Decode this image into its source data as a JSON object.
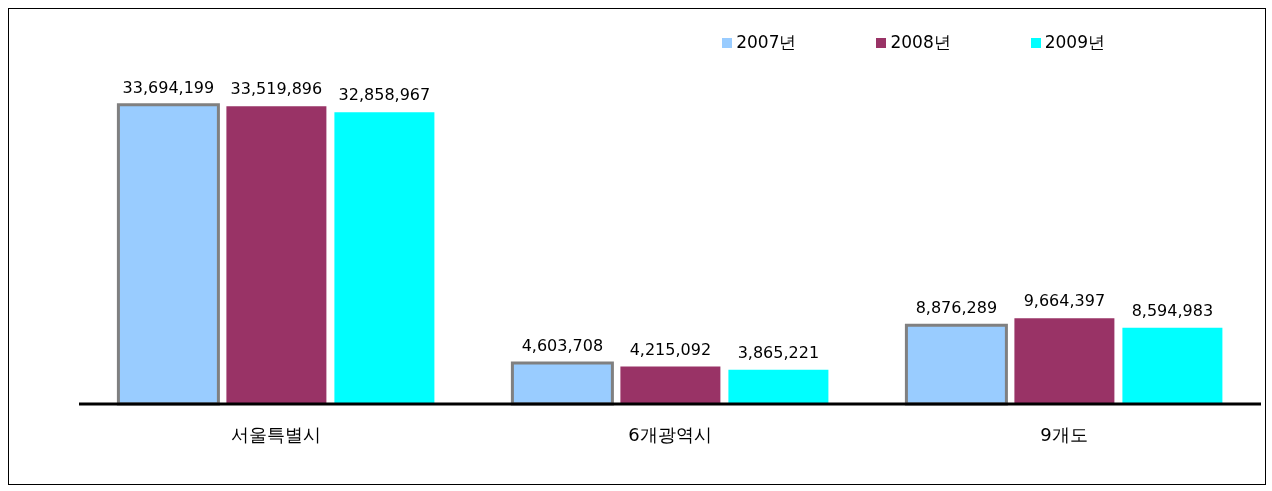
{
  "chart_data": {
    "type": "bar",
    "categories": [
      "서울특별시",
      "6개광역시",
      "9개도"
    ],
    "series": [
      {
        "name": "2007년",
        "color": "#99ccff",
        "values": [
          33694199,
          4603708,
          8876289
        ],
        "value_labels": [
          "33,694,199",
          "4,603,708",
          "8,876,289"
        ]
      },
      {
        "name": "2008년",
        "color": "#993366",
        "values": [
          33519896,
          4215092,
          9664397
        ],
        "value_labels": [
          "33,519,896",
          "4,215,092",
          "9,664,397"
        ]
      },
      {
        "name": "2009년",
        "color": "#00ffff",
        "values": [
          32858967,
          3865221,
          8594983
        ],
        "value_labels": [
          "32,858,967",
          "3,865,221",
          "8,594,983"
        ]
      }
    ],
    "legend": "top right",
    "grid": false
  }
}
